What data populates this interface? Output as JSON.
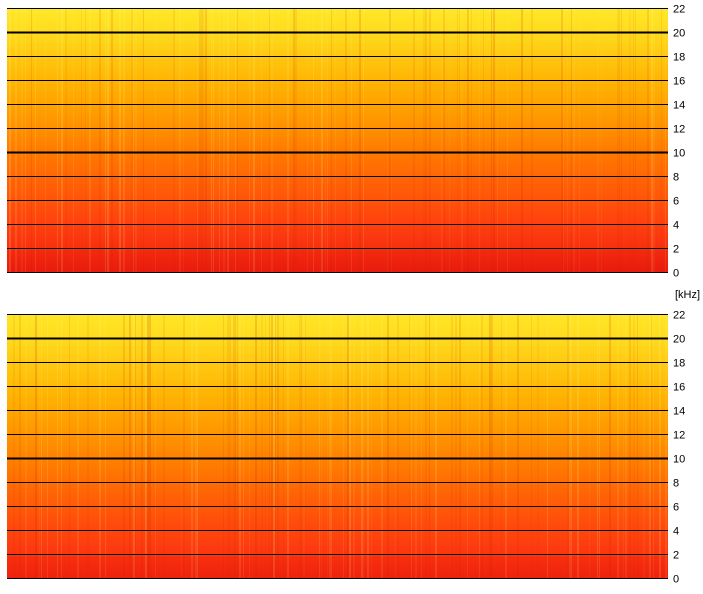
{
  "chart_data": [
    {
      "type": "heatmap",
      "title": "",
      "xlabel": "",
      "ylabel": "[kHz]",
      "ylim": [
        0,
        22
      ],
      "y_ticks": [
        "0",
        "2",
        "4",
        "6",
        "8",
        "10",
        "12",
        "14",
        "16",
        "18",
        "20",
        "22"
      ],
      "grid": true,
      "colormap": [
        "#ffff44",
        "#ffe020",
        "#ffb000",
        "#ff7a00",
        "#ff3a10",
        "#e01010"
      ],
      "energy_by_frequency_khz": {
        "freq": [
          0,
          2,
          4,
          6,
          8,
          10,
          12,
          14,
          16,
          18,
          20,
          22
        ],
        "level": [
          0.95,
          0.85,
          0.78,
          0.72,
          0.66,
          0.6,
          0.52,
          0.45,
          0.38,
          0.3,
          0.22,
          0.15
        ]
      }
    },
    {
      "type": "heatmap",
      "title": "",
      "xlabel": "",
      "ylabel": "[kHz]",
      "ylim": [
        0,
        22
      ],
      "y_ticks": [
        "0",
        "2",
        "4",
        "6",
        "8",
        "10",
        "12",
        "14",
        "16",
        "18",
        "20",
        "22"
      ],
      "grid": true,
      "colormap": [
        "#ffff44",
        "#ffe020",
        "#ffb000",
        "#ff7a00",
        "#ff3a10",
        "#e01010"
      ],
      "energy_by_frequency_khz": {
        "freq": [
          0,
          2,
          4,
          6,
          8,
          10,
          12,
          14,
          16,
          18,
          20,
          22
        ],
        "level": [
          0.9,
          0.82,
          0.76,
          0.7,
          0.64,
          0.57,
          0.5,
          0.43,
          0.36,
          0.29,
          0.22,
          0.16
        ]
      }
    }
  ],
  "unit_label": "[kHz]"
}
